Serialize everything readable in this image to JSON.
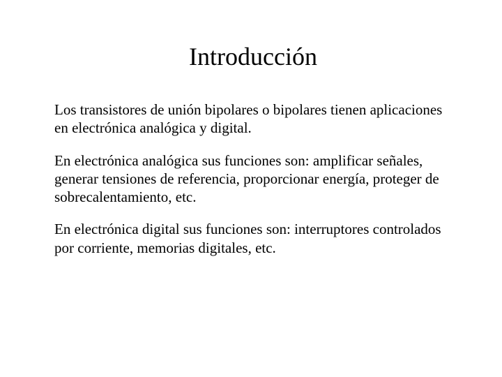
{
  "document": {
    "title": "Introducción",
    "paragraphs": [
      "Los transistores de unión bipolares o bipolares tienen aplicaciones en electrónica analógica y digital.",
      "En electrónica analógica sus funciones son: amplificar señales, generar tensiones de referencia, proporcionar energía, proteger de sobrecalentamiento, etc.",
      "En electrónica digital sus funciones son: interruptores controlados por corriente, memorias digitales, etc."
    ],
    "style": {
      "title_fontsize": 36,
      "body_fontsize": 21,
      "line_height": 1.25,
      "text_color": "#000000",
      "background_color": "#ffffff",
      "font_family": "Times New Roman"
    }
  }
}
